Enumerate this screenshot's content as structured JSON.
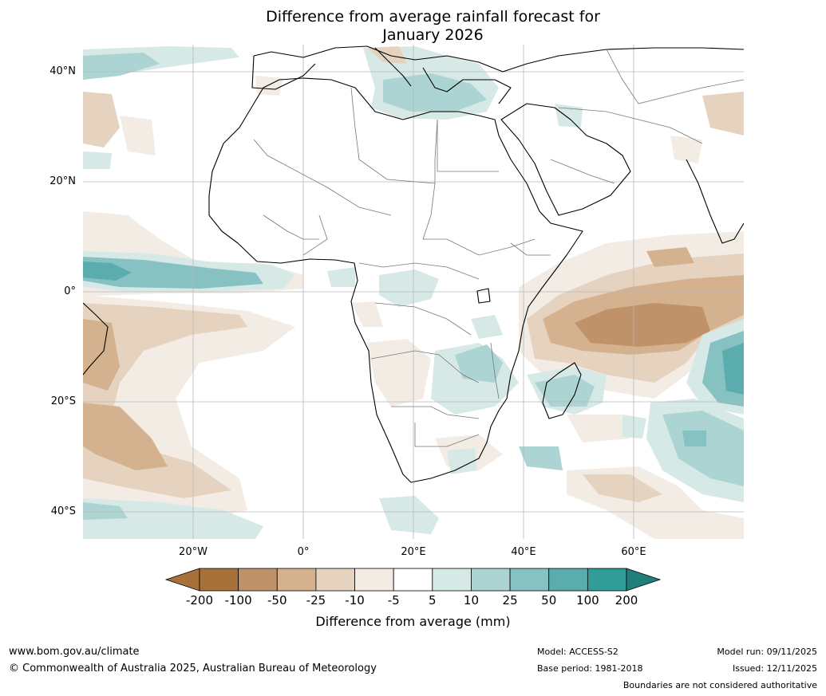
{
  "title": {
    "line1": "Difference from average rainfall forecast for",
    "line2": "January 2026"
  },
  "axes": {
    "lat_labels": [
      "40°N",
      "20°N",
      "0°",
      "20°S",
      "40°S"
    ],
    "lon_labels": [
      "20°W",
      "0°",
      "20°E",
      "40°E",
      "60°E"
    ]
  },
  "legend": {
    "title": "Difference from average (mm)",
    "labels": [
      "-200",
      "-100",
      "-50",
      "-25",
      "-10",
      "-5",
      "5",
      "10",
      "25",
      "50",
      "100",
      "200"
    ],
    "colors": [
      "#a9713a",
      "#a9713a",
      "#c0926a",
      "#d4b290",
      "#e6d3bf",
      "#f2ece5",
      "#ffffff",
      "#d6e9e7",
      "#acd4d2",
      "#85c2c1",
      "#5aadac",
      "#319d98",
      "#217f7b"
    ]
  },
  "footer": {
    "website": "www.bom.gov.au/climate",
    "copyright": "© Commonwealth of Australia 2025, Australian Bureau of Meteorology",
    "model": "Model: ACCESS-S2",
    "base_period": "Base period: 1981-2018",
    "model_run": "Model run: 09/11/2025",
    "issued": "Issued: 12/11/2025",
    "disclaimer": "Boundaries are not considered authoritative"
  }
}
